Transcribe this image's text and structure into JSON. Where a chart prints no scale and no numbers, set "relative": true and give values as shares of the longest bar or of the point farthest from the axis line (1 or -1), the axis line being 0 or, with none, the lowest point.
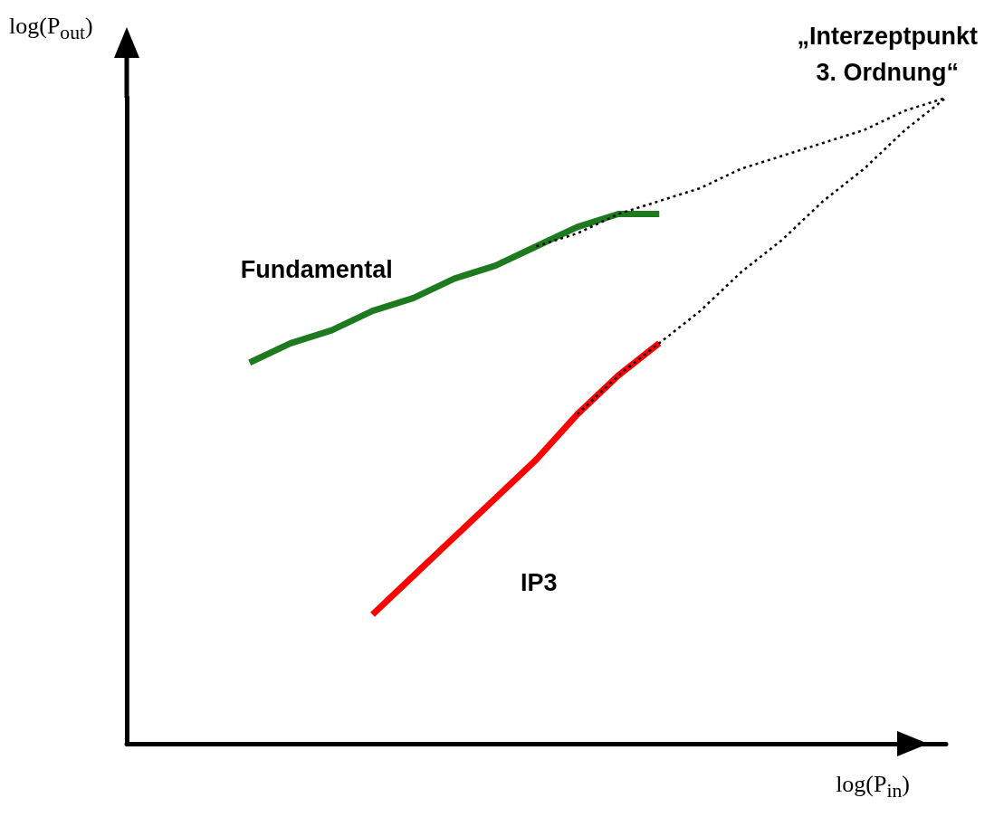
{
  "chart_data": {
    "type": "line",
    "relative": true,
    "xlabel": "log(P$_{in}$)",
    "ylabel": "log(P$_{out}$)",
    "grid": false,
    "legend": false,
    "marker": "none",
    "annotations": [
      "„Interzeptpunkt\n3. Ordnung“"
    ],
    "categories": [
      null,
      null,
      null,
      null,
      null,
      null,
      null,
      null,
      null,
      null,
      null,
      null,
      null,
      null,
      null,
      null,
      null,
      null,
      null,
      null,
      null
    ],
    "series": [
      {
        "name": "Fundamental",
        "color": "#1e7a1e",
        "values": [
          null,
          null,
          null,
          0.59,
          0.62,
          0.64,
          0.67,
          0.69,
          0.72,
          0.74,
          0.77,
          0.8,
          0.82,
          0.82,
          null,
          null,
          null,
          null,
          null,
          null,
          null
        ],
        "line_style": "solid"
      },
      {
        "name": "IP3",
        "color": "#ff0000",
        "values": [
          null,
          null,
          null,
          null,
          null,
          null,
          0.2,
          0.26,
          0.32,
          0.38,
          0.44,
          0.51,
          0.57,
          0.62,
          null,
          null,
          null,
          null,
          null,
          null,
          null
        ],
        "line_style": "solid"
      },
      {
        "color": "#000000",
        "values": [
          null,
          null,
          null,
          null,
          null,
          null,
          null,
          null,
          null,
          null,
          0.77,
          0.79,
          0.82,
          0.84,
          0.86,
          0.89,
          0.91,
          0.93,
          0.95,
          0.98,
          1
        ],
        "line_style": "dotted"
      },
      {
        "color": "#000000",
        "values": [
          null,
          null,
          null,
          null,
          null,
          null,
          null,
          null,
          null,
          null,
          null,
          0.51,
          0.57,
          0.62,
          0.67,
          0.73,
          0.78,
          0.84,
          0.89,
          0.95,
          1
        ],
        "line_style": "dotted"
      }
    ]
  }
}
